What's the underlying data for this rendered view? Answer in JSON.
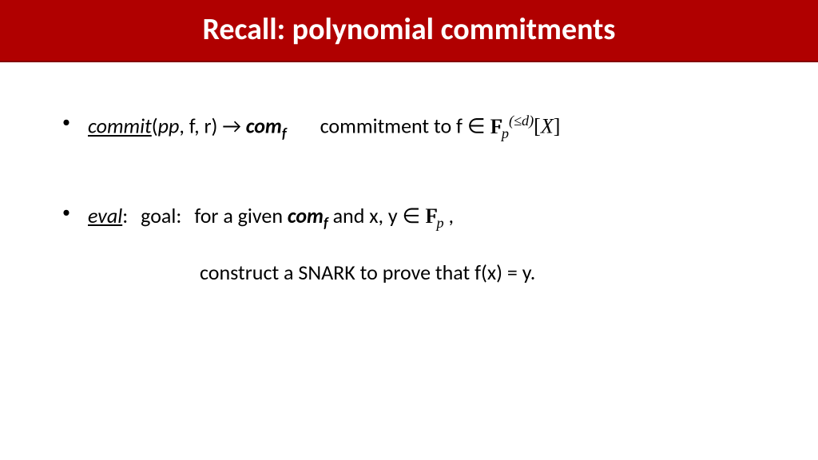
{
  "slide": {
    "title": "Recall:  polynomial commitments",
    "title_bg": "#b00000",
    "title_color": "#ffffff",
    "title_fontsize": 38,
    "body_fontsize": 26,
    "body_color": "#000000",
    "bullet1": {
      "fn_name": "commit",
      "args_open": "(",
      "arg1": "pp",
      "args_rest": ", f, r) ",
      "arrow": "→",
      "com": " com",
      "com_sub": "f",
      "desc_prefix": "commitment to f ∈ ",
      "field_F": "F",
      "field_sub": "p",
      "field_sup": "(≤d)",
      "bracket_open": "[",
      "X": "X",
      "bracket_close": "]"
    },
    "bullet2": {
      "fn_name": "eval",
      "colon": ":",
      "goal_label": "goal:",
      "goal_prefix": "for a given ",
      "com": "com",
      "com_sub": "f",
      "after_com": "  and  x, y ∈ ",
      "field_F": "F",
      "field_sub": "p",
      "comma": " ,",
      "line2": "construct a SNARK to prove that  f(x) = y."
    }
  }
}
